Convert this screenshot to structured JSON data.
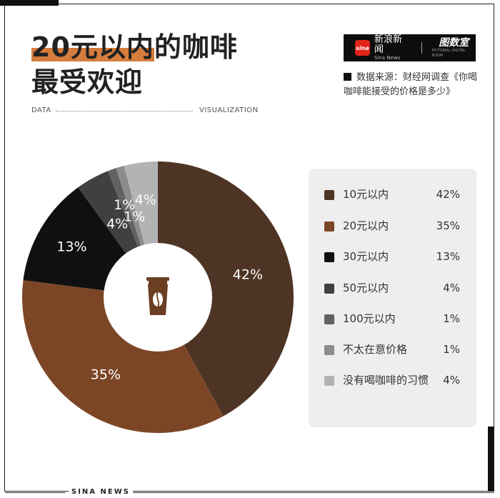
{
  "header": {
    "title_highlight": "20元以内",
    "title_rest_line1": "的咖啡",
    "title_line2": "最受欢迎"
  },
  "brand": {
    "logo_text": "sina",
    "name_cn": "新浪新闻",
    "name_en": "Sina News",
    "separator": "|",
    "tushi_cn": "图数室",
    "tushi_en": "PICTORIAL DIGITAL ROOM"
  },
  "source": {
    "text": "数据来源：财经网调查《你喝咖啡能接受的价格是多少》"
  },
  "divider": {
    "left": "DATA",
    "right": "VISUALIZATION"
  },
  "center_icon": "coffee-cup-icon",
  "chart_data": {
    "type": "pie",
    "categories": [
      "10元以内",
      "20元以内",
      "30元以内",
      "50元以内",
      "100元以内",
      "不太在意价格",
      "没有喝咖啡的习惯"
    ],
    "values": [
      42,
      35,
      13,
      4,
      1,
      1,
      4
    ],
    "value_labels": [
      "42%",
      "35%",
      "13%",
      "4%",
      "1%",
      "1%",
      "4%"
    ],
    "colors": [
      "#4e3424",
      "#7c4626",
      "#101010",
      "#404040",
      "#626262",
      "#8c8c8c",
      "#b3b3b3"
    ],
    "donut": true,
    "start_angle_deg": 0,
    "direction": "clockwise"
  },
  "footer": {
    "text": "SINA NEWS"
  }
}
